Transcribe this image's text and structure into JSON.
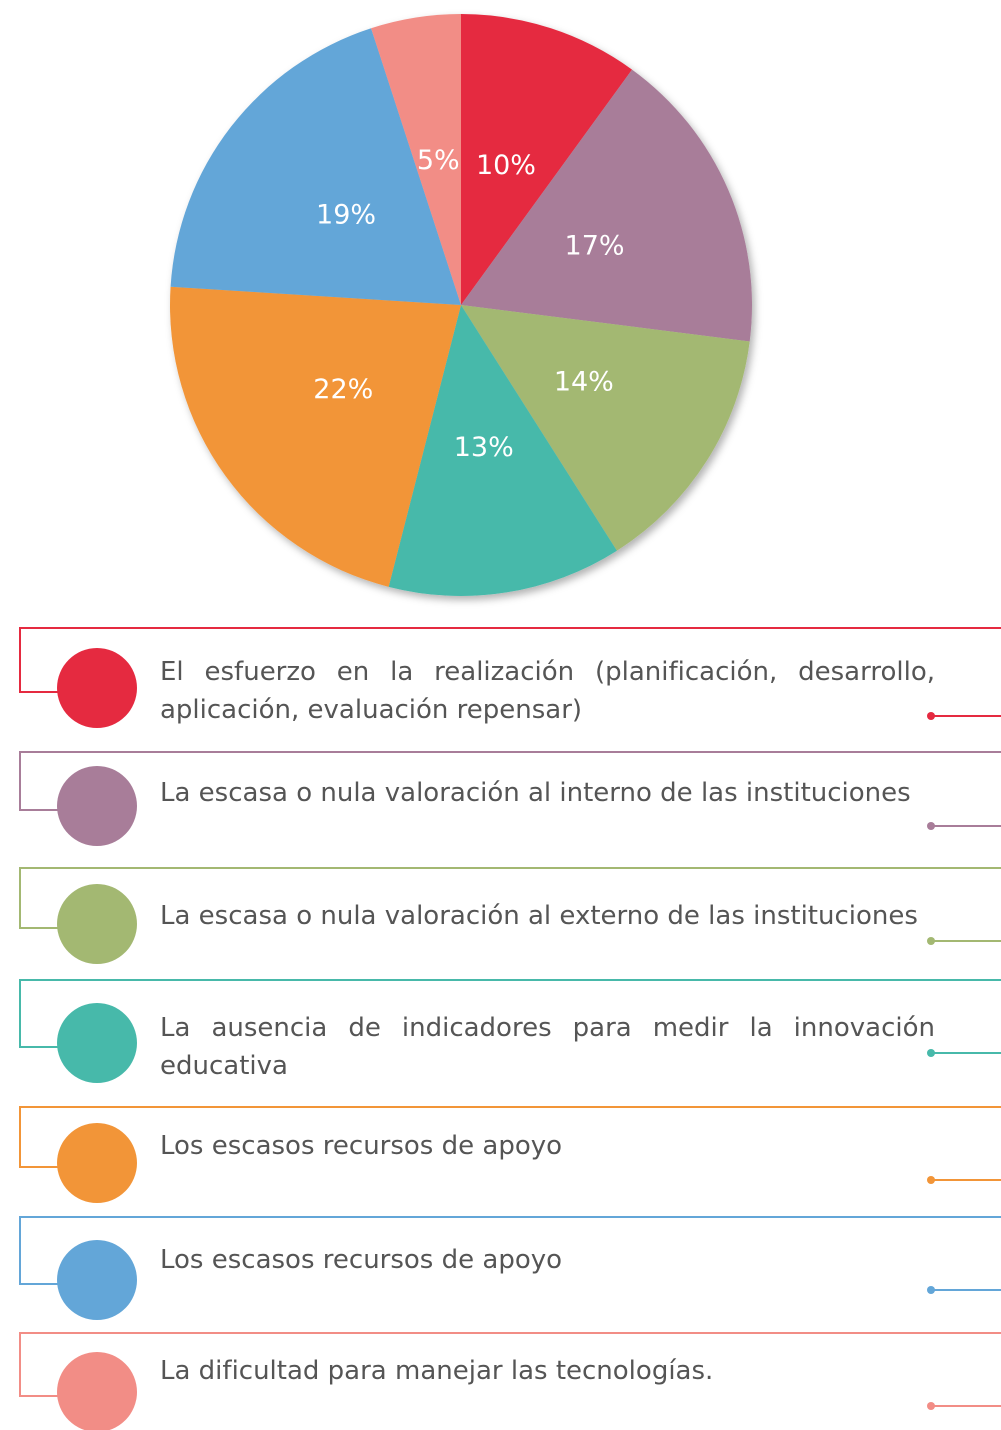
{
  "chart_data": {
    "type": "pie",
    "categories": [
      "El esfuerzo en la realización (planificación, desarrollo, aplicación, evaluación repensar)",
      "La escasa o nula valoración al interno de las instituciones",
      "La escasa o nula valoración al externo de las instituciones",
      "La ausencia de indicadores para medir la innovación educativa",
      "Los escasos recursos de apoyo",
      "Los escasos recursos de apoyo",
      "La dificultad para manejar las tecnologías."
    ],
    "values": [
      10,
      17,
      14,
      13,
      22,
      19,
      5
    ],
    "value_labels": [
      "10%",
      "17%",
      "14%",
      "13%",
      "22%",
      "19%",
      "5%"
    ],
    "colors": [
      "#e52a40",
      "#a87d99",
      "#a3b872",
      "#47b9aa",
      "#f29538",
      "#63a6d8",
      "#f28d86"
    ]
  }
}
